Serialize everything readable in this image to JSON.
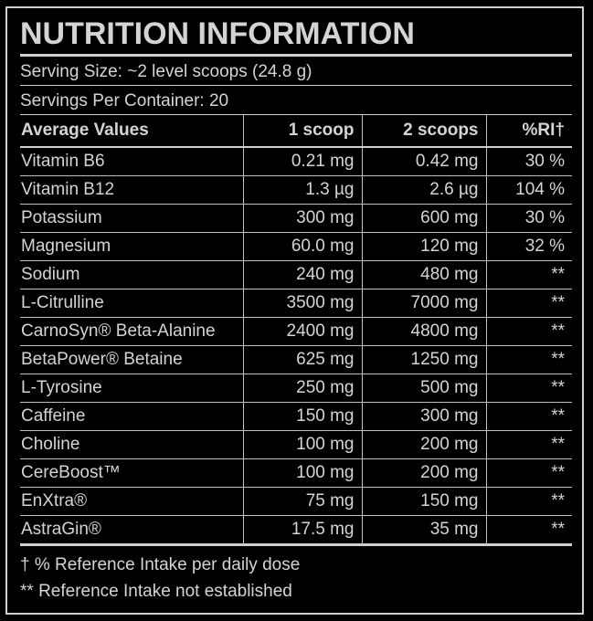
{
  "title": "NUTRITION INFORMATION",
  "serving_size": "Serving Size: ~2 level scoops (24.8 g)",
  "servings_per_container": "Servings Per Container: 20",
  "table": {
    "headers": [
      "Average Values",
      "1 scoop",
      "2 scoops",
      "%RI†"
    ],
    "rows": [
      [
        "Vitamin B6",
        "0.21 mg",
        "0.42 mg",
        "30 %"
      ],
      [
        "Vitamin B12",
        "1.3 µg",
        "2.6 µg",
        "104 %"
      ],
      [
        "Potassium",
        "300 mg",
        "600 mg",
        "30 %"
      ],
      [
        "Magnesium",
        "60.0 mg",
        "120 mg",
        "32 %"
      ],
      [
        "Sodium",
        "240 mg",
        "480 mg",
        "**"
      ],
      [
        "L-Citrulline",
        "3500 mg",
        "7000 mg",
        "**"
      ],
      [
        "CarnoSyn® Beta-Alanine",
        "2400 mg",
        "4800 mg",
        "**"
      ],
      [
        "BetaPower® Betaine",
        "625 mg",
        "1250 mg",
        "**"
      ],
      [
        "L-Tyrosine",
        "250 mg",
        "500 mg",
        "**"
      ],
      [
        "Caffeine",
        "150 mg",
        "300 mg",
        "**"
      ],
      [
        "Choline",
        "100 mg",
        "200 mg",
        "**"
      ],
      [
        "CereBoost™",
        "100 mg",
        "200 mg",
        "**"
      ],
      [
        "EnXtra®",
        "75 mg",
        "150 mg",
        "**"
      ],
      [
        "AstraGin®",
        "17.5 mg",
        "35 mg",
        "**"
      ]
    ]
  },
  "footnotes": [
    "† % Reference Intake per daily dose",
    "** Reference Intake not established"
  ],
  "colors": {
    "background": "#000000",
    "text": "#d4d4d4",
    "rule": "#cfcfcf"
  }
}
